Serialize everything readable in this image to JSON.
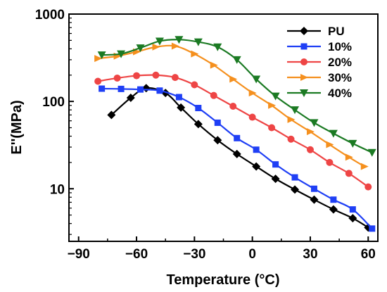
{
  "chart_data": {
    "type": "line",
    "xlabel": "Temperature (°C)",
    "ylabel": "E''(MPa)",
    "xlim": [
      -95,
      65
    ],
    "ylim": [
      2.5,
      1000
    ],
    "y_scale": "log",
    "x_ticks": [
      -90,
      -60,
      -30,
      0,
      30,
      60
    ],
    "x_tick_labels": [
      "−90",
      "−60",
      "−30",
      "0",
      "30",
      "60"
    ],
    "y_ticks": [
      10,
      100,
      1000
    ],
    "y_tick_labels": [
      "10",
      "100",
      "1000"
    ],
    "grid": false,
    "legend_position": "top-right",
    "series": [
      {
        "name": "PU",
        "color": "#000000",
        "marker": "diamond",
        "x": [
          -73,
          -63,
          -55,
          -45,
          -37,
          -28,
          -18,
          -8,
          2,
          12,
          22,
          32,
          42,
          52,
          60
        ],
        "y": [
          70,
          110,
          142,
          125,
          85,
          55,
          36,
          25,
          18,
          13,
          9.8,
          7.5,
          5.8,
          4.6,
          3.6
        ]
      },
      {
        "name": "10%",
        "color": "#1f3ff5",
        "marker": "square",
        "x": [
          -78,
          -68,
          -58,
          -48,
          -38,
          -28,
          -18,
          -8,
          2,
          12,
          22,
          32,
          42,
          52,
          62
        ],
        "y": [
          140,
          139,
          137,
          133,
          112,
          84,
          57,
          38,
          28,
          19,
          13.5,
          10,
          7.5,
          5.8,
          3.5
        ]
      },
      {
        "name": "20%",
        "color": "#ee4545",
        "marker": "circle",
        "x": [
          -80,
          -70,
          -60,
          -50,
          -40,
          -30,
          -20,
          -10,
          0,
          10,
          20,
          30,
          40,
          50,
          60
        ],
        "y": [
          170,
          185,
          197,
          200,
          188,
          155,
          117,
          88,
          66,
          50,
          37,
          28,
          20,
          15,
          10.5
        ]
      },
      {
        "name": "30%",
        "color": "#f5901e",
        "marker": "triangle-right",
        "x": [
          -80,
          -70,
          -60,
          -50,
          -40,
          -30,
          -20,
          -10,
          0,
          10,
          20,
          30,
          40,
          50,
          58
        ],
        "y": [
          310,
          330,
          370,
          420,
          430,
          350,
          260,
          180,
          125,
          90,
          62,
          45,
          32,
          23,
          18
        ]
      },
      {
        "name": "40%",
        "color": "#1b7a23",
        "marker": "triangle-down",
        "x": [
          -78,
          -68,
          -58,
          -48,
          -38,
          -28,
          -18,
          -8,
          2,
          12,
          22,
          32,
          42,
          52,
          62
        ],
        "y": [
          340,
          350,
          410,
          490,
          510,
          480,
          420,
          300,
          180,
          115,
          80,
          57,
          43,
          33,
          26
        ]
      }
    ]
  }
}
